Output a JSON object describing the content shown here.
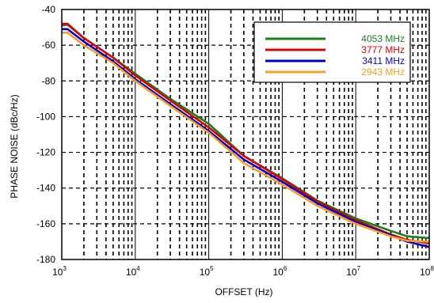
{
  "chart_data": {
    "type": "line",
    "title": "",
    "xlabel": "OFFSET (Hz)",
    "ylabel": "PHASE NOISE (dBc/Hz)",
    "xscale": "log",
    "xlim": [
      1000,
      100000000
    ],
    "ylim": [
      -180,
      -40
    ],
    "x_tick_labels": [
      {
        "x": 1000,
        "base": "10",
        "exp": "3"
      },
      {
        "x": 10000,
        "base": "10",
        "exp": "4"
      },
      {
        "x": 100000,
        "base": "10",
        "exp": "5"
      },
      {
        "x": 1000000,
        "base": "10",
        "exp": "6"
      },
      {
        "x": 10000000,
        "base": "10",
        "exp": "7"
      },
      {
        "x": 100000000,
        "base": "10",
        "exp": "8"
      }
    ],
    "y_ticks": [
      -40,
      -60,
      -80,
      -100,
      -120,
      -140,
      -160,
      -180
    ],
    "y_tick_labels": [
      "-40",
      "-60",
      "-80",
      "-100",
      "-120",
      "-140",
      "-160",
      "-180"
    ],
    "grid": true,
    "legend_position": "top-right",
    "series": [
      {
        "name": "4053 MHz",
        "color": "#1a7f1a",
        "x": [
          1000,
          1200,
          2000,
          5000,
          10000,
          30000,
          100000,
          300000,
          1000000,
          3000000,
          10000000,
          30000000,
          50000000,
          100000000
        ],
        "y": [
          -49,
          -48.5,
          -56,
          -67,
          -76,
          -90,
          -104,
          -122,
          -134.5,
          -147,
          -157,
          -164,
          -167,
          -168
        ]
      },
      {
        "name": "3777 MHz",
        "color": "#e00000",
        "x": [
          1000,
          1200,
          2000,
          5000,
          10000,
          30000,
          100000,
          300000,
          1000000,
          3000000,
          10000000,
          30000000,
          50000000,
          100000000
        ],
        "y": [
          -48,
          -48,
          -56,
          -67,
          -77,
          -91,
          -106,
          -122,
          -135,
          -147.5,
          -158,
          -166,
          -169,
          -171
        ]
      },
      {
        "name": "3411 MHz",
        "color": "#0000cc",
        "x": [
          1000,
          1200,
          2000,
          5000,
          10000,
          30000,
          100000,
          300000,
          1000000,
          3000000,
          10000000,
          30000000,
          50000000,
          100000000
        ],
        "y": [
          -51,
          -51,
          -58,
          -69,
          -79,
          -93,
          -108,
          -124,
          -136.5,
          -148.5,
          -159,
          -166.5,
          -170,
          -173
        ]
      },
      {
        "name": "2943 MHz",
        "color": "#f5a020",
        "x": [
          1000,
          1200,
          2000,
          5000,
          10000,
          30000,
          100000,
          300000,
          1000000,
          3000000,
          10000000,
          30000000,
          50000000,
          100000000
        ],
        "y": [
          -53,
          -53,
          -60,
          -70,
          -80,
          -94,
          -109,
          -126,
          -138,
          -150,
          -160,
          -167,
          -169.5,
          -170
        ]
      }
    ]
  }
}
